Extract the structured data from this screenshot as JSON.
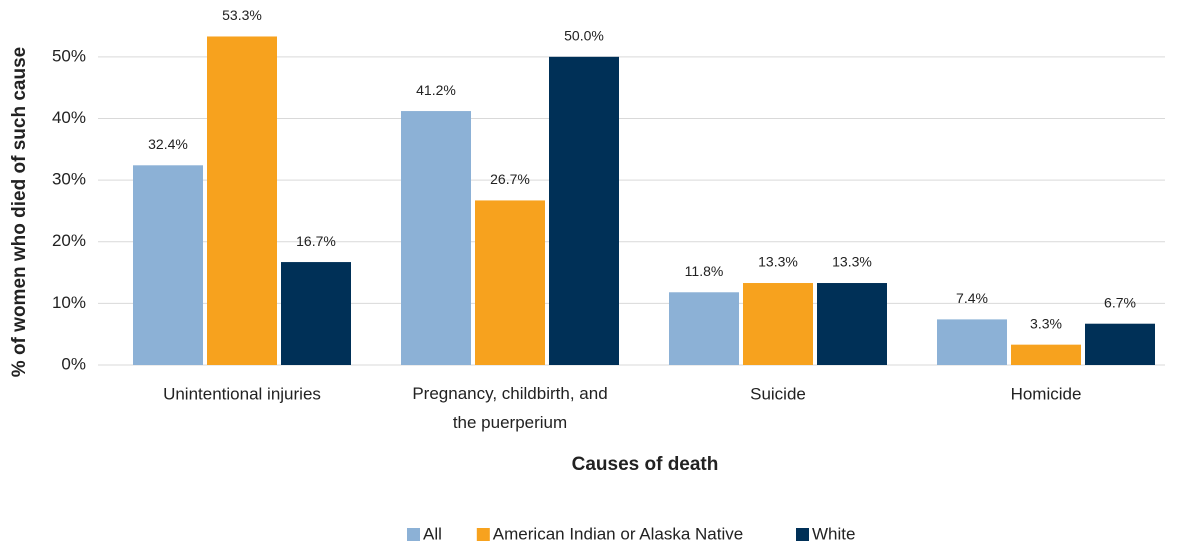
{
  "chart_data": {
    "type": "bar",
    "y_label": "% of women who died of such cause",
    "x_label": "Causes of death",
    "categories": [
      "Unintentional injuries",
      "Pregnancy, childbirth, and the puerperium",
      "Suicide",
      "Homicide"
    ],
    "series": [
      {
        "name": "All",
        "color": "#8cb1d6",
        "values": [
          32.4,
          41.2,
          11.8,
          7.4
        ],
        "value_labels": [
          "32.4%",
          "41.2%",
          "11.8%",
          "7.4%"
        ]
      },
      {
        "name": "American Indian or Alaska Native",
        "color": "#f7a21e",
        "values": [
          53.3,
          26.7,
          13.3,
          3.3
        ],
        "value_labels": [
          "53.3%",
          "26.7%",
          "13.3%",
          "3.3%"
        ]
      },
      {
        "name": "White",
        "color": "#003057",
        "values": [
          16.7,
          50.0,
          13.3,
          6.7
        ],
        "value_labels": [
          "16.7%",
          "50.0%",
          "13.3%",
          "6.7%"
        ]
      }
    ],
    "ylim": [
      0,
      55
    ],
    "yticks": [
      {
        "value": 0,
        "label": "0%"
      },
      {
        "value": 10,
        "label": "10%"
      },
      {
        "value": 20,
        "label": "20%"
      },
      {
        "value": 30,
        "label": "30%"
      },
      {
        "value": 40,
        "label": "40%"
      },
      {
        "value": 50,
        "label": "50%"
      }
    ],
    "grid": true,
    "legend": "bottom"
  }
}
